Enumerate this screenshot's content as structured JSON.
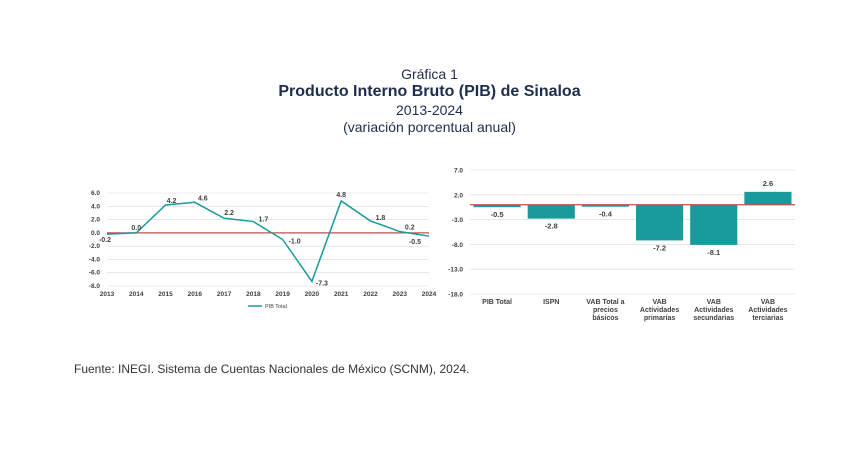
{
  "header": {
    "label": "Gráfica 1",
    "title": "Producto Interno Bruto (PIB) de Sinaloa",
    "period": "2013-2024",
    "subtitle": "(variación porcentual anual)"
  },
  "source": "Fuente: INEGI. Sistema de Cuentas Nacionales de México (SCNM), 2024.",
  "colors": {
    "series": "#1a9a9a",
    "zero_line": "#c0504d",
    "grid": "#d9d9d9",
    "text": "#404040"
  },
  "chart_data": [
    {
      "type": "line",
      "categories": [
        "2013",
        "2014",
        "2015",
        "2016",
        "2017",
        "2018",
        "2019",
        "2020",
        "2021",
        "2022",
        "2023",
        "2024"
      ],
      "series": [
        {
          "name": "PIB Total",
          "values": [
            -0.2,
            0.0,
            4.2,
            4.6,
            2.2,
            1.7,
            -1.0,
            -7.3,
            4.8,
            1.8,
            0.2,
            -0.5
          ]
        }
      ],
      "data_labels": [
        "-0.2",
        "0.0",
        "4.2",
        "4.6",
        "2.2",
        "1.7",
        "-1.0",
        "-7.3",
        "4.8",
        "1.8",
        "0.2",
        "-0.5"
      ],
      "ylim": [
        -8,
        6
      ],
      "yticks": [
        "6.0",
        "4.0",
        "2.0",
        "0.0",
        "-2.0",
        "-4.0",
        "-6.0",
        "-8.0"
      ],
      "grid": true,
      "legend": "bottom"
    },
    {
      "type": "bar",
      "categories": [
        "PIB Total",
        "ISPN",
        "VAB Total a precios básicos",
        "VAB Actividades primarias",
        "VAB Actividades secundarias",
        "VAB Actividades terciarias"
      ],
      "category_lines": [
        [
          "PIB Total"
        ],
        [
          "ISPN"
        ],
        [
          "VAB Total a",
          "precios",
          "básicos"
        ],
        [
          "VAB",
          "Actividades",
          "primarias"
        ],
        [
          "VAB",
          "Actividades",
          "secundarias"
        ],
        [
          "VAB",
          "Actividades",
          "terciarias"
        ]
      ],
      "values": [
        -0.5,
        -2.8,
        -0.4,
        -7.2,
        -8.1,
        2.6
      ],
      "data_labels": [
        "-0.5",
        "-2.8",
        "-0.4",
        "-7.2",
        "-8.1",
        "2.6"
      ],
      "ylim": [
        -18,
        7
      ],
      "yticks": [
        "7.0",
        "2.0",
        "-3.0",
        "-8.0",
        "-13.0",
        "-18.0"
      ],
      "grid": true
    }
  ]
}
